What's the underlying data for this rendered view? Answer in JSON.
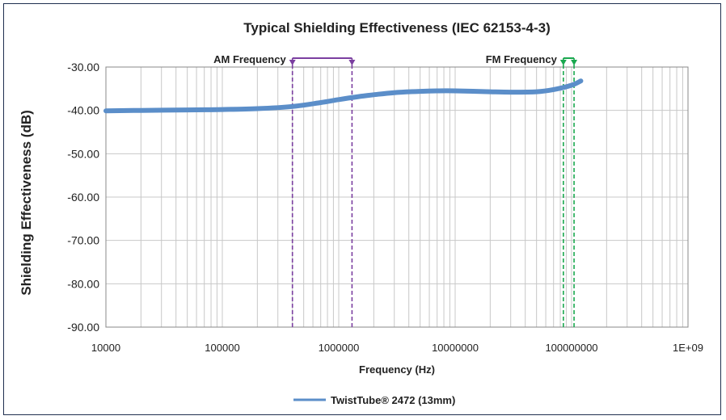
{
  "chart_data": {
    "type": "line",
    "title": "Typical Shielding Effectiveness (IEC 62153-4-3)",
    "xlabel": "Frequency (Hz)",
    "ylabel": "Shielding Effectiveness (dB)",
    "x_scale": "log",
    "xlim": [
      10000,
      1000000000
    ],
    "ylim": [
      -90,
      -30
    ],
    "grid": true,
    "x_tick_labels": [
      "10000",
      "100000",
      "1000000",
      "10000000",
      "100000000",
      "1E+09"
    ],
    "y_tick_labels": [
      "-30.00",
      "-40.00",
      "-50.00",
      "-60.00",
      "-70.00",
      "-80.00",
      "-90.00"
    ],
    "legend_position": "bottom",
    "series": [
      {
        "name": "TwistTube® 2472 (13mm)",
        "color": "#5b8ec9",
        "x": [
          10000,
          20000,
          50000,
          100000,
          200000,
          400000,
          700000,
          1000000,
          1500000,
          2000000,
          3000000,
          5000000,
          7000000,
          10000000,
          20000000,
          30000000,
          50000000,
          70000000,
          100000000,
          120000000
        ],
        "y": [
          -40.1,
          -40.0,
          -39.9,
          -39.8,
          -39.6,
          -39.1,
          -38.2,
          -37.5,
          -36.8,
          -36.4,
          -35.9,
          -35.6,
          -35.5,
          -35.5,
          -35.7,
          -35.8,
          -35.7,
          -35.2,
          -34.2,
          -33.2
        ]
      }
    ],
    "annotations": [
      {
        "label": "AM Frequency",
        "color": "#7b3fa0",
        "x_start": 400000,
        "x_end": 1300000
      },
      {
        "label": "FM Frequency",
        "color": "#1aa84f",
        "x_start": 85000000,
        "x_end": 105000000
      }
    ]
  }
}
